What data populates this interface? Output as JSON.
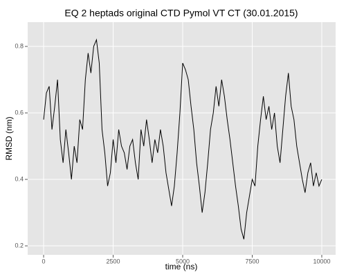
{
  "chart_data": {
    "type": "line",
    "title": "EQ 2 heptads original CTD Pymol VT CT (30.01.2015)",
    "x_label": "time (ns)",
    "y_label": "RMSD (nm)",
    "x": [
      0,
      100,
      200,
      300,
      400,
      500,
      600,
      700,
      800,
      900,
      1000,
      1100,
      1200,
      1300,
      1400,
      1500,
      1600,
      1700,
      1800,
      1900,
      2000,
      2100,
      2200,
      2300,
      2400,
      2500,
      2600,
      2700,
      2800,
      2900,
      3000,
      3100,
      3200,
      3300,
      3400,
      3500,
      3600,
      3700,
      3800,
      3900,
      4000,
      4100,
      4200,
      4300,
      4400,
      4500,
      4600,
      4700,
      4800,
      4900,
      5000,
      5100,
      5200,
      5300,
      5400,
      5500,
      5600,
      5700,
      5800,
      5900,
      6000,
      6100,
      6200,
      6300,
      6400,
      6500,
      6600,
      6700,
      6800,
      6900,
      7000,
      7100,
      7200,
      7300,
      7400,
      7500,
      7600,
      7700,
      7800,
      7900,
      8000,
      8100,
      8200,
      8300,
      8400,
      8500,
      8600,
      8700,
      8800,
      8900,
      9000,
      9100,
      9200,
      9300,
      9400,
      9500,
      9600,
      9700,
      9800,
      9900,
      10000
    ],
    "series": [
      {
        "name": "RMSD",
        "color": "#000000",
        "values": [
          0.58,
          0.66,
          0.68,
          0.55,
          0.62,
          0.7,
          0.52,
          0.45,
          0.55,
          0.48,
          0.4,
          0.5,
          0.45,
          0.58,
          0.55,
          0.7,
          0.78,
          0.72,
          0.8,
          0.82,
          0.75,
          0.55,
          0.48,
          0.38,
          0.42,
          0.52,
          0.45,
          0.55,
          0.5,
          0.48,
          0.43,
          0.5,
          0.52,
          0.45,
          0.4,
          0.55,
          0.5,
          0.58,
          0.52,
          0.45,
          0.52,
          0.48,
          0.55,
          0.5,
          0.42,
          0.37,
          0.32,
          0.38,
          0.48,
          0.6,
          0.75,
          0.73,
          0.7,
          0.62,
          0.55,
          0.45,
          0.38,
          0.3,
          0.36,
          0.45,
          0.55,
          0.6,
          0.68,
          0.62,
          0.7,
          0.65,
          0.58,
          0.52,
          0.45,
          0.38,
          0.32,
          0.25,
          0.22,
          0.3,
          0.35,
          0.4,
          0.38,
          0.5,
          0.58,
          0.65,
          0.58,
          0.62,
          0.55,
          0.6,
          0.5,
          0.45,
          0.55,
          0.65,
          0.72,
          0.62,
          0.58,
          0.5,
          0.45,
          0.4,
          0.36,
          0.42,
          0.45,
          0.38,
          0.42,
          0.38,
          0.4
        ]
      }
    ],
    "xlim": [
      -573,
      10498
    ],
    "xticks": [
      0,
      2500,
      5000,
      7500,
      10000
    ],
    "ylim": [
      0.173,
      0.873
    ],
    "yticks": [
      0.2,
      0.4,
      0.6,
      0.8
    ],
    "grid": true
  }
}
